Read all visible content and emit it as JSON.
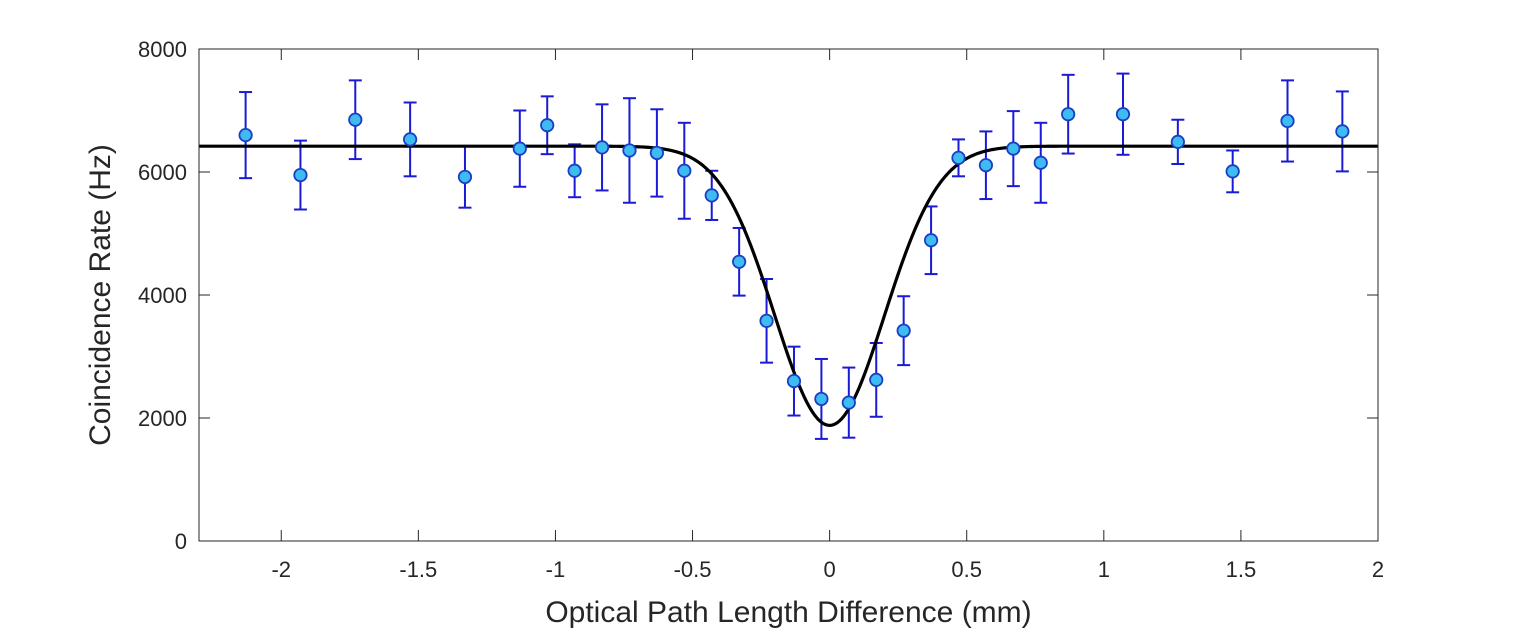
{
  "chart_data": {
    "type": "scatter",
    "title": "",
    "xlabel": "Optical Path Length Difference (mm)",
    "ylabel": "Coincidence Rate (Hz)",
    "xlim": [
      -2.3,
      2.0
    ],
    "ylim": [
      0,
      8000
    ],
    "xticks": [
      -2,
      -1.5,
      -1,
      -0.5,
      0,
      0.5,
      1,
      1.5,
      2
    ],
    "xtick_labels": [
      "-2",
      "-1.5",
      "-1",
      "-0.5",
      "0",
      "0.5",
      "1",
      "1.5",
      "2"
    ],
    "yticks": [
      0,
      2000,
      4000,
      6000,
      8000
    ],
    "ytick_labels": [
      "0",
      "2000",
      "4000",
      "6000",
      "8000"
    ],
    "grid": false,
    "colors": {
      "marker_fill": "#3ebcf2",
      "marker_edge": "#1a3fc4",
      "errorbar": "#1a1ad6",
      "fit_line": "#000000",
      "axes": "#262626"
    },
    "series": [
      {
        "name": "data",
        "kind": "errorbar-scatter",
        "x": [
          -2.13,
          -1.93,
          -1.73,
          -1.53,
          -1.33,
          -1.13,
          -1.03,
          -0.93,
          -0.83,
          -0.73,
          -0.63,
          -0.53,
          -0.43,
          -0.33,
          -0.23,
          -0.13,
          -0.03,
          0.07,
          0.17,
          0.27,
          0.37,
          0.47,
          0.57,
          0.67,
          0.77,
          0.87,
          1.07,
          1.27,
          1.47,
          1.67,
          1.87
        ],
        "y": [
          6600,
          5950,
          6850,
          6530,
          5920,
          6380,
          6760,
          6020,
          6400,
          6350,
          6310,
          6020,
          5620,
          4540,
          3580,
          2600,
          2310,
          2250,
          2620,
          3420,
          4890,
          6230,
          6110,
          6380,
          6150,
          6940,
          6940,
          6490,
          6010,
          6830,
          6660
        ],
        "yerr_low": [
          700,
          560,
          640,
          600,
          500,
          620,
          470,
          430,
          700,
          850,
          710,
          780,
          400,
          550,
          680,
          560,
          650,
          570,
          600,
          560,
          550,
          300,
          550,
          610,
          650,
          640,
          660,
          360,
          340,
          660,
          650
        ],
        "yerr_high": [
          700,
          560,
          640,
          600,
          500,
          620,
          470,
          430,
          700,
          850,
          710,
          780,
          400,
          550,
          680,
          560,
          650,
          570,
          600,
          560,
          550,
          300,
          550,
          610,
          650,
          640,
          660,
          360,
          340,
          660,
          650
        ]
      },
      {
        "name": "fit",
        "kind": "line",
        "model": "gaussian dip",
        "baseline": 6420,
        "dip_depth": 4540,
        "center": 0.0,
        "sigma": 0.2
      }
    ]
  }
}
